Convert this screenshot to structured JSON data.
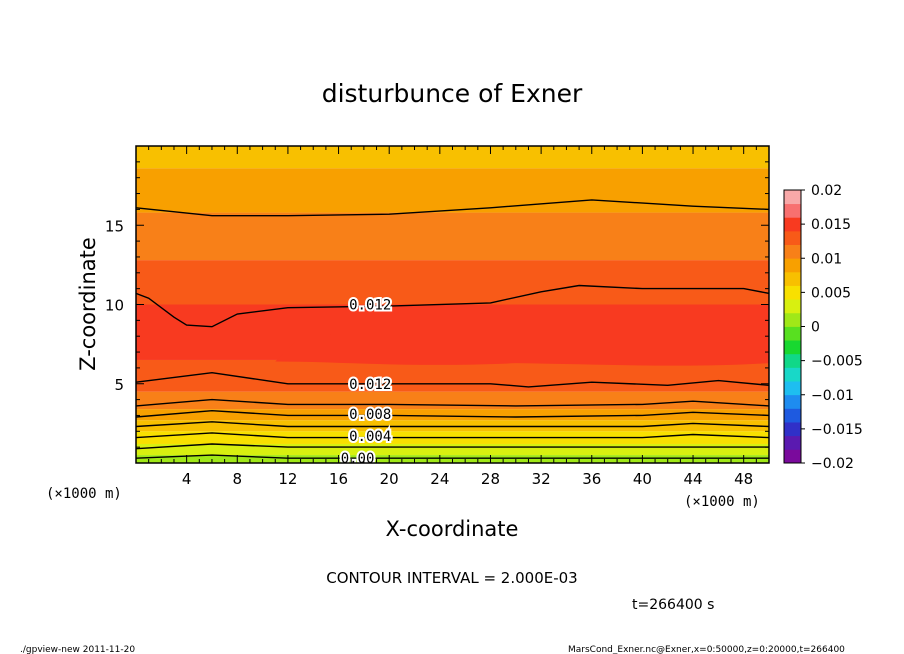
{
  "chart_data": {
    "type": "heatmap",
    "title": "disturbunce of Exner",
    "xlabel": "X-coordinate",
    "ylabel": "Z-coordinate",
    "x_unit": "(×1000 m)",
    "x_unit_right": "(×1000 m)",
    "xlim": [
      0,
      50
    ],
    "ylim": [
      0,
      20
    ],
    "xticks": [
      "4",
      "8",
      "12",
      "16",
      "20",
      "24",
      "28",
      "32",
      "36",
      "40",
      "44",
      "48"
    ],
    "yticks": [
      "5",
      "10",
      "15"
    ],
    "colorbar": {
      "ticks": [
        "0.02",
        "0.015",
        "0.01",
        "0.005",
        "0",
        "−0.005",
        "−0.01",
        "−0.015",
        "−0.02"
      ],
      "range": [
        -0.02,
        0.02
      ],
      "bins": 20
    },
    "contour_labels": [
      "0.012",
      "0.012",
      "0.008",
      "0.004",
      "0.00"
    ],
    "contour_interval_text": "CONTOUR INTERVAL = 2.000E-03",
    "time_text": "t=266400 s",
    "bands": [
      {
        "z": 0.0,
        "v": 0.001
      },
      {
        "z": 0.5,
        "v": 0.003
      },
      {
        "z": 1.2,
        "v": 0.005
      },
      {
        "z": 2.0,
        "v": 0.007
      },
      {
        "z": 2.7,
        "v": 0.009
      },
      {
        "z": 3.4,
        "v": 0.011
      },
      {
        "z": 4.5,
        "v": 0.013
      },
      {
        "z": 6.5,
        "v": 0.014
      },
      {
        "z": 10.0,
        "v": 0.013
      },
      {
        "z": 12.8,
        "v": 0.011
      },
      {
        "z": 15.8,
        "v": 0.009
      },
      {
        "z": 18.6,
        "v": 0.007
      }
    ],
    "contours": [
      {
        "level": 0.0,
        "points": [
          [
            0,
            0.3
          ],
          [
            6,
            0.5
          ],
          [
            12,
            0.3
          ],
          [
            20,
            0.3
          ],
          [
            30,
            0.3
          ],
          [
            40,
            0.3
          ],
          [
            50,
            0.3
          ]
        ]
      },
      {
        "level": 0.002,
        "points": [
          [
            0,
            0.9
          ],
          [
            6,
            1.2
          ],
          [
            12,
            1.0
          ],
          [
            20,
            1.0
          ],
          [
            30,
            1.0
          ],
          [
            40,
            1.0
          ],
          [
            50,
            1.0
          ]
        ]
      },
      {
        "level": 0.004,
        "points": [
          [
            0,
            1.6
          ],
          [
            6,
            1.9
          ],
          [
            12,
            1.6
          ],
          [
            20,
            1.6
          ],
          [
            30,
            1.6
          ],
          [
            40,
            1.6
          ],
          [
            44,
            1.8
          ],
          [
            50,
            1.6
          ]
        ]
      },
      {
        "level": 0.006,
        "points": [
          [
            0,
            2.3
          ],
          [
            6,
            2.6
          ],
          [
            12,
            2.3
          ],
          [
            20,
            2.3
          ],
          [
            30,
            2.3
          ],
          [
            40,
            2.3
          ],
          [
            44,
            2.5
          ],
          [
            50,
            2.3
          ]
        ]
      },
      {
        "level": 0.008,
        "points": [
          [
            0,
            2.9
          ],
          [
            6,
            3.3
          ],
          [
            12,
            3.0
          ],
          [
            20,
            3.0
          ],
          [
            30,
            2.9
          ],
          [
            40,
            3.0
          ],
          [
            44,
            3.2
          ],
          [
            50,
            3.0
          ]
        ]
      },
      {
        "level": 0.01,
        "points": [
          [
            0,
            3.6
          ],
          [
            6,
            4.0
          ],
          [
            12,
            3.7
          ],
          [
            20,
            3.7
          ],
          [
            30,
            3.6
          ],
          [
            40,
            3.7
          ],
          [
            44,
            3.9
          ],
          [
            50,
            3.6
          ]
        ]
      },
      {
        "level": 0.012,
        "points": [
          [
            0,
            5.1
          ],
          [
            6,
            5.7
          ],
          [
            12,
            5.0
          ],
          [
            20,
            5.0
          ],
          [
            28,
            5.0
          ],
          [
            31,
            4.8
          ],
          [
            36,
            5.1
          ],
          [
            42,
            4.9
          ],
          [
            46,
            5.2
          ],
          [
            50,
            4.9
          ]
        ]
      },
      {
        "level": 0.012,
        "points": [
          [
            0,
            10.7
          ],
          [
            1,
            10.4
          ],
          [
            3,
            9.2
          ],
          [
            4,
            8.7
          ],
          [
            6,
            8.6
          ],
          [
            8,
            9.4
          ],
          [
            12,
            9.8
          ],
          [
            20,
            9.9
          ],
          [
            28,
            10.1
          ],
          [
            32,
            10.8
          ],
          [
            35,
            11.2
          ],
          [
            40,
            11.0
          ],
          [
            48,
            11.0
          ],
          [
            50,
            10.7
          ]
        ]
      },
      {
        "level": 0.01,
        "points": [
          [
            0,
            16.1
          ],
          [
            6,
            15.6
          ],
          [
            12,
            15.6
          ],
          [
            20,
            15.7
          ],
          [
            28,
            16.1
          ],
          [
            36,
            16.6
          ],
          [
            44,
            16.2
          ],
          [
            50,
            16.0
          ]
        ]
      }
    ],
    "core_region": {
      "v": 0.015
    }
  },
  "footer": {
    "left": "./gpview-new   2011-11-20",
    "right": "MarsCond_Exner.nc@Exner,x=0:50000,z=0:20000,t=266400"
  },
  "colors": {
    "palette": [
      "#7a0a9c",
      "#5a1ab0",
      "#3030c8",
      "#1e5ae0",
      "#1e8cf0",
      "#1ebef0",
      "#18d8c8",
      "#10d888",
      "#18d830",
      "#58e020",
      "#a0e818",
      "#d8f010",
      "#f8e000",
      "#f8c000",
      "#f8a000",
      "#f88018",
      "#f85a18",
      "#f83a20",
      "#f87070",
      "#f8a8a8"
    ]
  }
}
